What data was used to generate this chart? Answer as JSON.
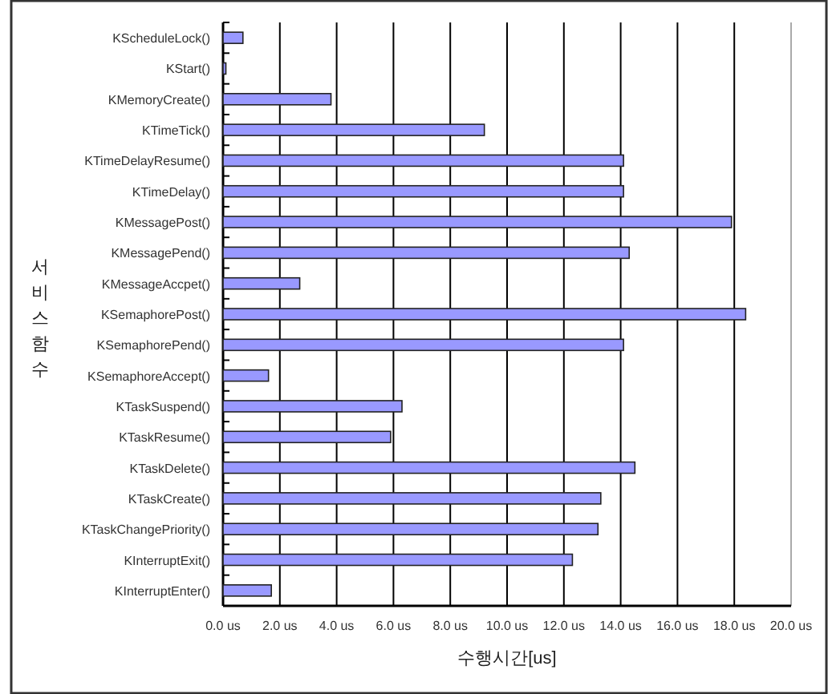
{
  "chart_data": {
    "type": "bar",
    "orientation": "horizontal",
    "xlabel": "수행시간[us]",
    "ylabel": "서비스함수",
    "categories": [
      "KScheduleLock()",
      "KStart()",
      "KMemoryCreate()",
      "KTimeTick()",
      "KTimeDelayResume()",
      "KTimeDelay()",
      "KMessagePost()",
      "KMessagePend()",
      "KMessageAccpet()",
      "KSemaphorePost()",
      "KSemaphorePend()",
      "KSemaphoreAccept()",
      "KTaskSuspend()",
      "KTaskResume()",
      "KTaskDelete()",
      "KTaskCreate()",
      "KTaskChangePriority()",
      "KInterruptExit()",
      "KInterruptEnter()"
    ],
    "values": [
      0.7,
      0.1,
      3.8,
      9.2,
      14.1,
      14.1,
      17.9,
      14.3,
      2.7,
      18.4,
      14.1,
      1.6,
      6.3,
      5.9,
      14.5,
      13.3,
      13.2,
      12.3,
      1.7
    ],
    "color": "#9999ff",
    "xlim": [
      0,
      20
    ],
    "xticks": [
      {
        "value": 0,
        "label": "0.0 us"
      },
      {
        "value": 2,
        "label": "2.0 us"
      },
      {
        "value": 4,
        "label": "4.0 us"
      },
      {
        "value": 6,
        "label": "6.0 us"
      },
      {
        "value": 8,
        "label": "8.0 us"
      },
      {
        "value": 10,
        "label": "10.0 us"
      },
      {
        "value": 12,
        "label": "12.0 us"
      },
      {
        "value": 14,
        "label": "14.0 us"
      },
      {
        "value": 16,
        "label": "16.0 us"
      },
      {
        "value": 18,
        "label": "18.0 us"
      },
      {
        "value": 20,
        "label": "20.0 us"
      }
    ],
    "grid": "x"
  }
}
